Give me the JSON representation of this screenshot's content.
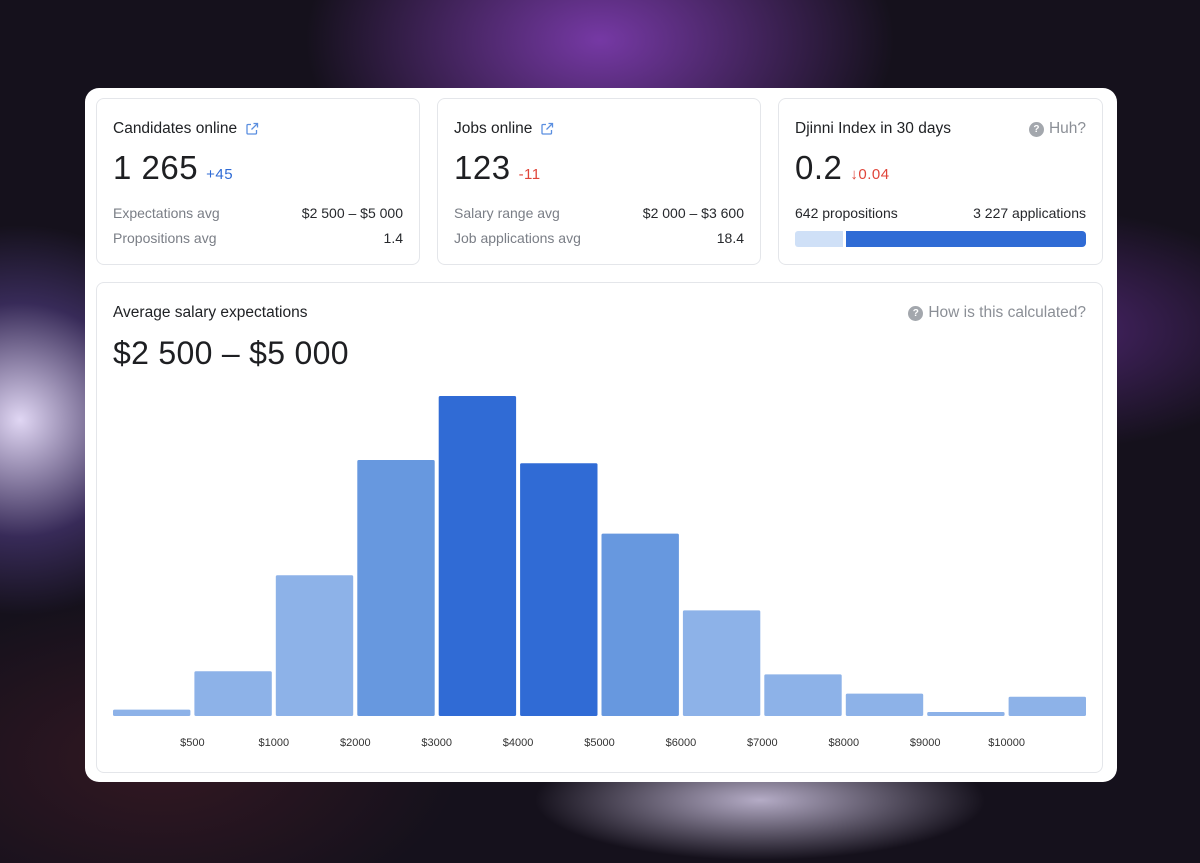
{
  "cards": {
    "candidates": {
      "title": "Candidates online",
      "value": "1 265",
      "delta": "+45",
      "rows": [
        {
          "label": "Expectations avg",
          "value": "$2 500 – $5 000"
        },
        {
          "label": "Propositions avg",
          "value": "1.4"
        }
      ]
    },
    "jobs": {
      "title": "Jobs online",
      "value": "123",
      "delta": "-11",
      "rows": [
        {
          "label": "Salary range avg",
          "value": "$2 000 – $3 600"
        },
        {
          "label": "Job applications avg",
          "value": "18.4"
        }
      ]
    },
    "index": {
      "title": "Djinni Index in 30 days",
      "help": "Huh?",
      "value": "0.2",
      "delta": "↓0.04",
      "propositions": "642 propositions",
      "applications": "3 227 applications",
      "propositions_share": 0.166
    }
  },
  "chart_section": {
    "title": "Average salary expectations",
    "range": "$2 500 – $5 000",
    "help": "How is this calculated?"
  },
  "colors": {
    "accent": "#2f6bd5",
    "bar_dark": "#306bd5",
    "bar_mid": "#6798df",
    "bar_light": "#8db2e8",
    "negative": "#e0453a"
  },
  "chart_data": {
    "type": "bar",
    "tick_labels": [
      "$500",
      "$1000",
      "$2000",
      "$3000",
      "$4000",
      "$5000",
      "$6000",
      "$7000",
      "$8000",
      "$9000",
      "$10000"
    ],
    "values": [
      2,
      14,
      44,
      80,
      100,
      79,
      57,
      33,
      13,
      7,
      1,
      6
    ],
    "shade": [
      "light",
      "light",
      "light",
      "mid",
      "dark",
      "dark",
      "mid",
      "light",
      "light",
      "light",
      "light",
      "light"
    ],
    "ylim": [
      0,
      100
    ],
    "grid": false,
    "legend": "none"
  }
}
